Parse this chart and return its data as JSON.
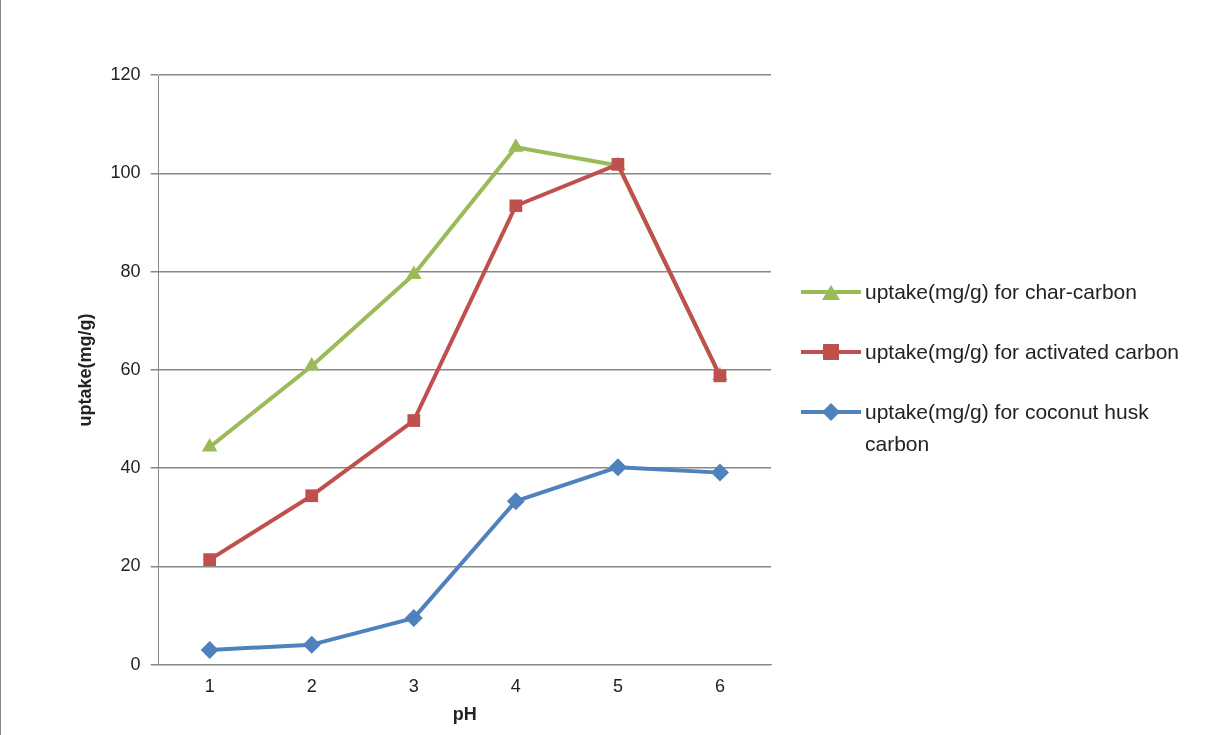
{
  "chart_data": {
    "type": "line",
    "xlabel": "pH",
    "ylabel": "uptake(mg/g)",
    "categories": [
      "1",
      "2",
      "3",
      "4",
      "5",
      "6"
    ],
    "series": [
      {
        "name": "uptake(mg/g) for char-carbon",
        "color": "#9bbb59",
        "marker": "triangle",
        "values": [
          44.3,
          60.8,
          79.4,
          105.3,
          101.6,
          58.8
        ]
      },
      {
        "name": "uptake(mg/g) for activated carbon",
        "color": "#c0504d",
        "marker": "square",
        "values": [
          21.4,
          34.4,
          49.7,
          93.4,
          101.8,
          58.8
        ]
      },
      {
        "name": "uptake(mg/g) for coconut husk carbon",
        "color": "#4f81bd",
        "marker": "diamond",
        "values": [
          3.0,
          4.1,
          9.5,
          33.3,
          40.2,
          39.1
        ]
      }
    ],
    "ylim": [
      0,
      120
    ],
    "yticks": [
      0,
      20,
      40,
      60,
      80,
      100,
      120
    ],
    "grid": "y",
    "legend": "right",
    "line_style": "solid"
  }
}
